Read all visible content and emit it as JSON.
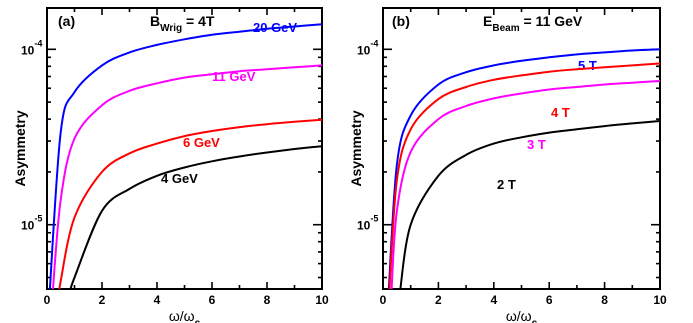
{
  "chart_data": [
    {
      "type": "line",
      "panel": "(a)",
      "annotation": {
        "main": "B",
        "sub": "Wrig",
        "rest": " = 4T"
      },
      "xlabel": {
        "main": "ω/ω",
        "sub": "c"
      },
      "ylabel": "Asymmetry",
      "xlim": [
        0,
        10
      ],
      "ylim": [
        4.3e-06,
        0.000172
      ],
      "yscale": "log",
      "xticks": [
        "0",
        "2",
        "4",
        "6",
        "8",
        "10"
      ],
      "ytick_labels": [
        {
          "base": "10",
          "exp": "-4"
        },
        {
          "base": "10",
          "exp": "-5"
        }
      ],
      "x": [
        0.5,
        1,
        2,
        3,
        4,
        5,
        6,
        7,
        8,
        9,
        10
      ],
      "series": [
        {
          "name": "20 GeV",
          "color": "#0000ff",
          "x0": 0.09,
          "values": [
            3.4e-05,
            5.7e-05,
            8.1e-05,
            9.6e-05,
            0.000106,
            0.000114,
            0.000121,
            0.000126,
            0.000131,
            0.000135,
            0.000139
          ]
        },
        {
          "name": "11 GeV",
          "color": "#ff00ff",
          "x0": 0.2,
          "values": [
            1.4e-05,
            3.1e-05,
            4.8e-05,
            5.8e-05,
            6.4e-05,
            6.9e-05,
            7.2e-05,
            7.5e-05,
            7.7e-05,
            7.9e-05,
            8.1e-05
          ]
        },
        {
          "name": "6 GeV",
          "color": "#ff0000",
          "x0": 0.45,
          "values": [
            4.8e-06,
            1.1e-05,
            2e-05,
            2.55e-05,
            2.9e-05,
            3.2e-05,
            3.42e-05,
            3.6e-05,
            3.74e-05,
            3.86e-05,
            3.97e-05
          ]
        },
        {
          "name": "4 GeV",
          "color": "#000000",
          "x0": 0.8,
          "values": [
            null,
            5e-06,
            1.2e-05,
            1.6e-05,
            1.9e-05,
            2.12e-05,
            2.3e-05,
            2.45e-05,
            2.58e-05,
            2.7e-05,
            2.8e-05
          ]
        }
      ]
    },
    {
      "type": "line",
      "panel": "(b)",
      "annotation": {
        "main": "E",
        "sub": "Beam",
        "rest": " = 11 GeV"
      },
      "xlabel": {
        "main": "ω/ω",
        "sub": "c"
      },
      "ylabel": "Asymmetry",
      "xlim": [
        0,
        10
      ],
      "ylim": [
        4.3e-06,
        0.000172
      ],
      "yscale": "log",
      "xticks": [
        "0",
        "2",
        "4",
        "6",
        "8",
        "10"
      ],
      "ytick_labels": [
        {
          "base": "10",
          "exp": "-4"
        },
        {
          "base": "10",
          "exp": "-5"
        }
      ],
      "x": [
        0.5,
        1,
        2,
        3,
        4,
        5,
        6,
        7,
        8,
        9,
        10
      ],
      "series": [
        {
          "name": "5 T",
          "color": "#0000ff",
          "x0": 0.2,
          "values": [
            2.2e-05,
            4.2e-05,
            6.3e-05,
            7.4e-05,
            8.1e-05,
            8.6e-05,
            9e-05,
            9.35e-05,
            9.6e-05,
            9.85e-05,
            0.0001
          ]
        },
        {
          "name": "4 T",
          "color": "#ff0000",
          "x0": 0.22,
          "values": [
            1.8e-05,
            3.5e-05,
            5.2e-05,
            6.1e-05,
            6.7e-05,
            7.1e-05,
            7.45e-05,
            7.7e-05,
            7.9e-05,
            8.1e-05,
            8.3e-05
          ]
        },
        {
          "name": "3 T",
          "color": "#ff00ff",
          "x0": 0.3,
          "values": [
            1.2e-05,
            2.6e-05,
            4e-05,
            4.75e-05,
            5.25e-05,
            5.6e-05,
            5.9e-05,
            6.1e-05,
            6.3e-05,
            6.45e-05,
            6.6e-05
          ]
        },
        {
          "name": "2 T",
          "color": "#000000",
          "x0": 0.6,
          "values": [
            4.6e-06,
            1e-05,
            1.9e-05,
            2.5e-05,
            2.9e-05,
            3.15e-05,
            3.35e-05,
            3.5e-05,
            3.65e-05,
            3.78e-05,
            3.9e-05
          ]
        }
      ]
    }
  ]
}
